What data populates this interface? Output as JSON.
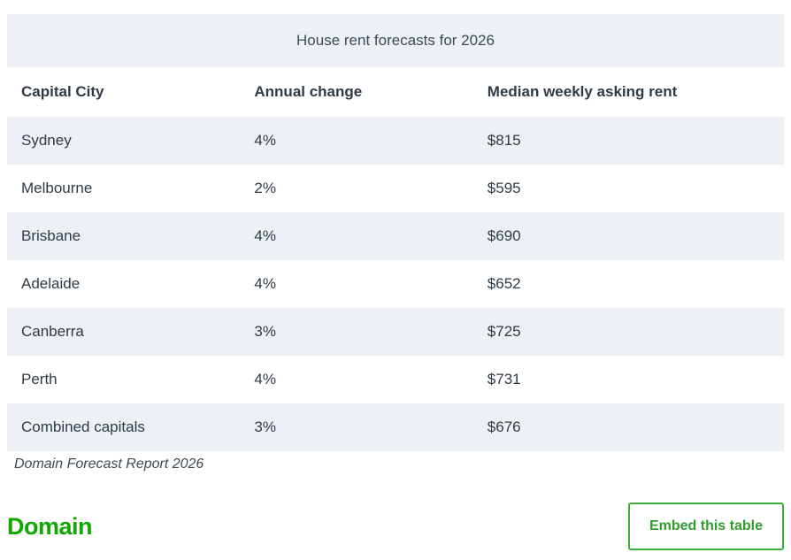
{
  "chart_data": {
    "type": "table",
    "title": "House rent forecasts for 2026",
    "columns": [
      "Capital City",
      "Annual change",
      "Median weekly asking rent"
    ],
    "rows": [
      [
        "Sydney",
        "4%",
        "$815"
      ],
      [
        "Melbourne",
        "2%",
        "$595"
      ],
      [
        "Brisbane",
        "4%",
        "$690"
      ],
      [
        "Adelaide",
        "4%",
        "$652"
      ],
      [
        "Canberra",
        "3%",
        "$725"
      ],
      [
        "Perth",
        "4%",
        "$731"
      ],
      [
        "Combined capitals",
        "3%",
        "$676"
      ]
    ],
    "source": "Domain Forecast Report 2026"
  },
  "footer": {
    "logo_text": "Domain",
    "embed_button_label": "Embed this table"
  },
  "colors": {
    "stripe_bg": "#edf0f4",
    "title_bg": "#edf0f4",
    "text": "#2e3b47",
    "brand_green": "#0ea800",
    "button_green": "#3fae3a"
  }
}
